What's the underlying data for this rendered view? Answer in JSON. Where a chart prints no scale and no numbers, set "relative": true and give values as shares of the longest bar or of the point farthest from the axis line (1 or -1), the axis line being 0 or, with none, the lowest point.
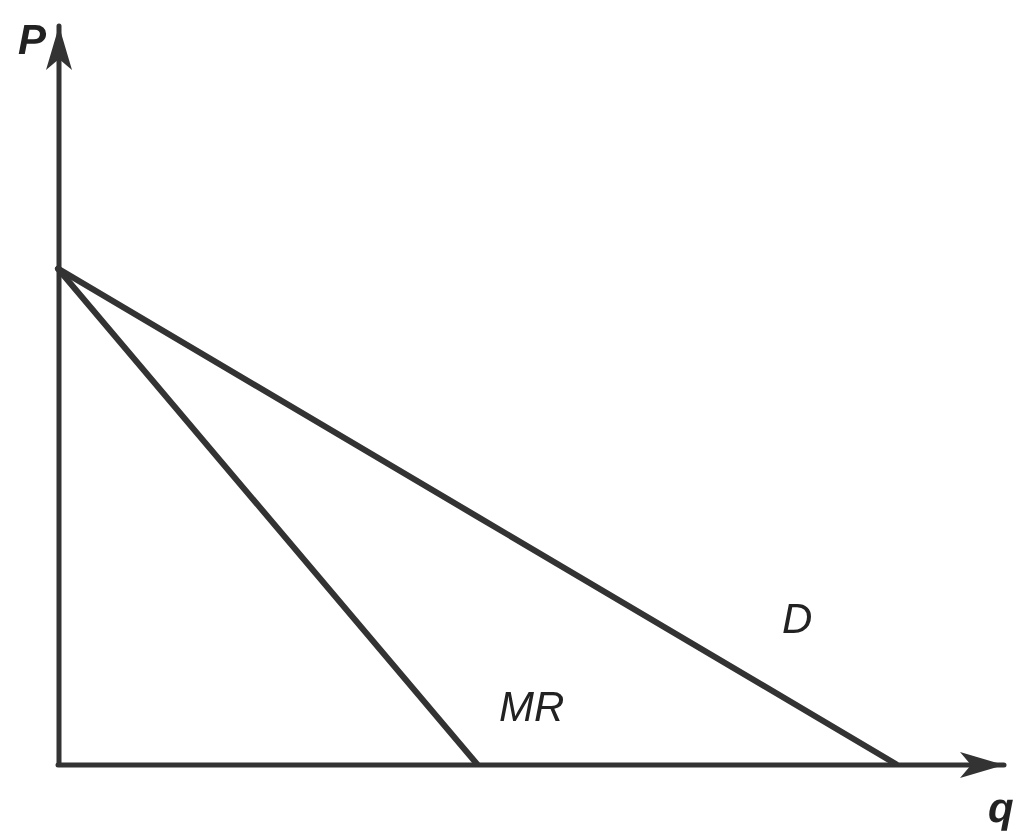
{
  "chart_data": {
    "type": "line",
    "xlabel": "q",
    "ylabel": "P",
    "categories": [
      null,
      null,
      null
    ],
    "relative": true,
    "tick_labels": false,
    "marker": "none",
    "line_style": "solid",
    "series": [
      {
        "name": "D",
        "color": "#333333",
        "values": [
          1,
          0.5,
          0
        ]
      },
      {
        "name": "MR",
        "color": "#333333",
        "values": [
          1,
          0,
          null
        ]
      }
    ]
  }
}
